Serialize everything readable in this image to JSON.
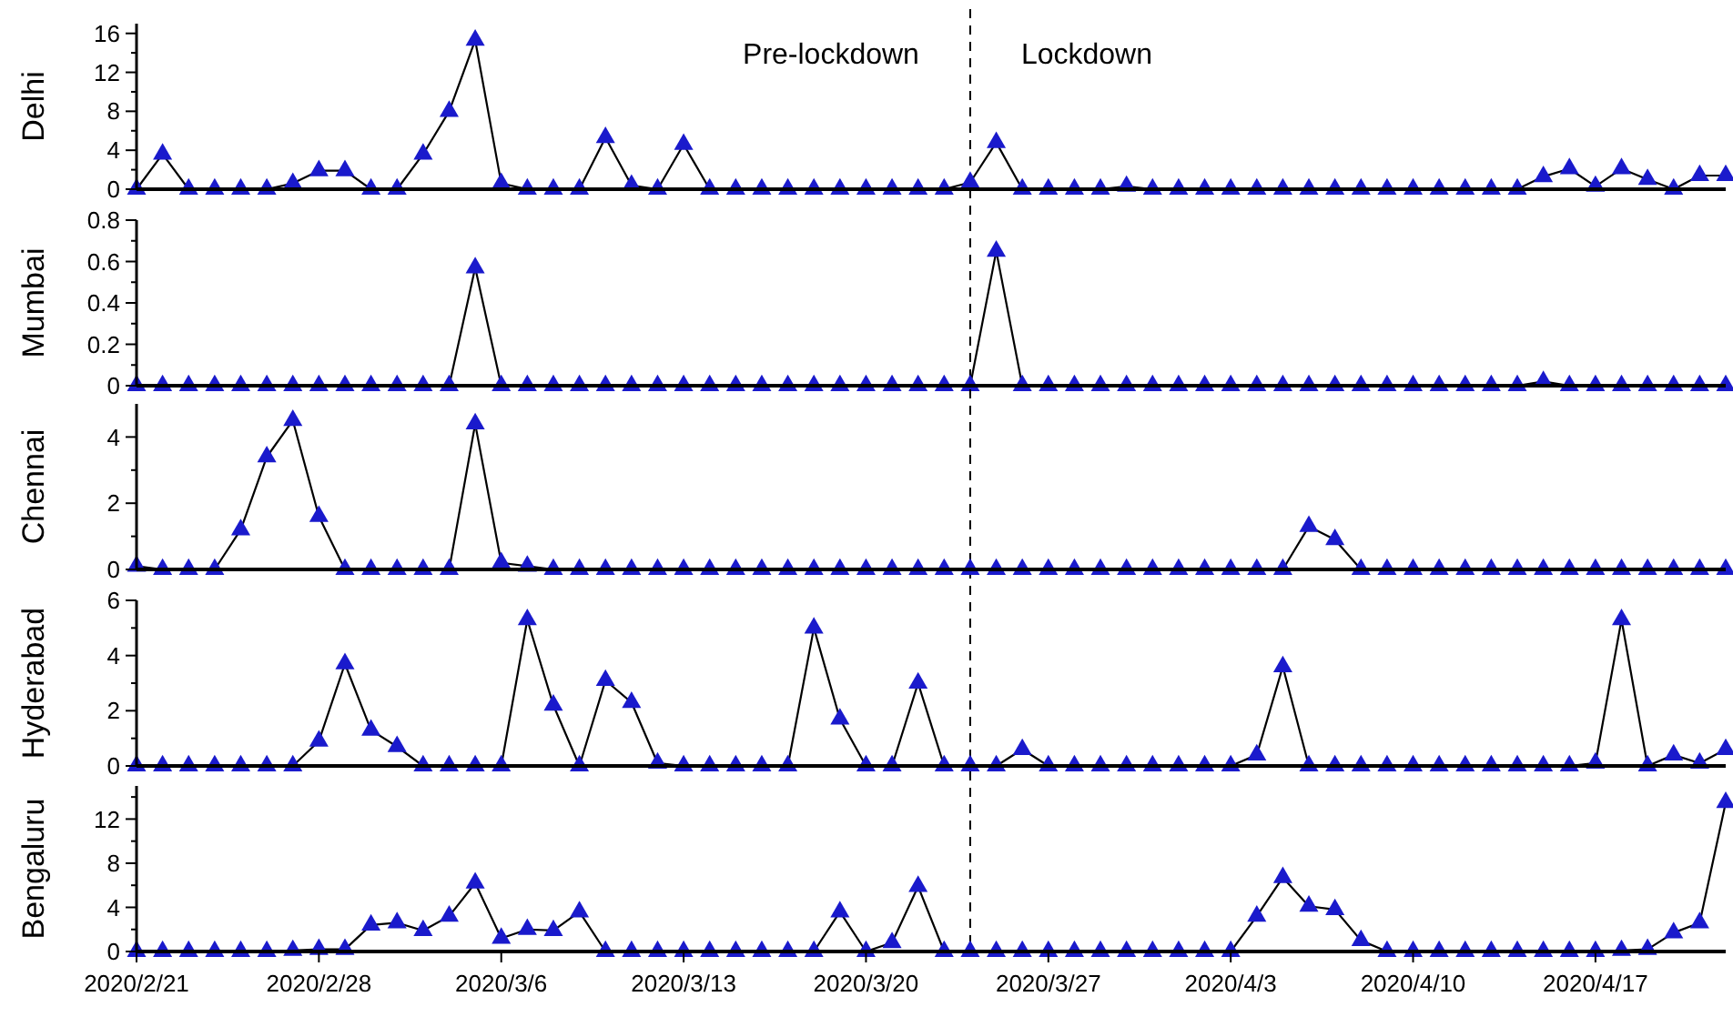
{
  "chart_data": [
    {
      "type": "line",
      "ylabel": "Delhi",
      "marker": "triangle",
      "tick_labels": "y",
      "xlim": [
        "2020-02-21",
        "2020-04-22"
      ],
      "ylim": [
        0,
        17
      ],
      "yticks": [
        0,
        {
          "value": 2,
          "label": null
        },
        4,
        {
          "value": 6,
          "label": null
        },
        8,
        {
          "value": 10,
          "label": null
        },
        12,
        {
          "value": 14,
          "label": null
        },
        16
      ],
      "x": [
        "2020-02-21",
        "2020-02-22",
        "2020-02-23",
        "2020-02-24",
        "2020-02-25",
        "2020-02-26",
        "2020-02-27",
        "2020-02-28",
        "2020-02-29",
        "2020-03-01",
        "2020-03-02",
        "2020-03-03",
        "2020-03-04",
        "2020-03-05",
        "2020-03-06",
        "2020-03-07",
        "2020-03-08",
        "2020-03-09",
        "2020-03-10",
        "2020-03-11",
        "2020-03-12",
        "2020-03-13",
        "2020-03-14",
        "2020-03-15",
        "2020-03-16",
        "2020-03-17",
        "2020-03-18",
        "2020-03-19",
        "2020-03-20",
        "2020-03-21",
        "2020-03-22",
        "2020-03-23",
        "2020-03-24",
        "2020-03-25",
        "2020-03-26",
        "2020-03-27",
        "2020-03-28",
        "2020-03-29",
        "2020-03-30",
        "2020-03-31",
        "2020-04-01",
        "2020-04-02",
        "2020-04-03",
        "2020-04-04",
        "2020-04-05",
        "2020-04-06",
        "2020-04-07",
        "2020-04-08",
        "2020-04-09",
        "2020-04-10",
        "2020-04-11",
        "2020-04-12",
        "2020-04-13",
        "2020-04-14",
        "2020-04-15",
        "2020-04-16",
        "2020-04-17",
        "2020-04-18",
        "2020-04-19",
        "2020-04-20",
        "2020-04-21",
        "2020-04-22"
      ],
      "series": [
        {
          "color": "#1a1acc",
          "values": [
            0,
            3.6,
            0,
            0,
            0,
            0,
            0.6,
            1.9,
            1.9,
            0,
            0,
            3.6,
            8,
            15.3,
            0.6,
            0,
            0,
            0,
            5.3,
            0.4,
            0,
            4.6,
            0,
            0,
            0,
            0,
            0,
            0,
            0,
            0,
            0,
            0,
            0.7,
            4.8,
            0,
            0,
            0,
            0,
            0.3,
            0,
            0,
            0,
            0,
            0,
            0,
            0,
            0,
            0,
            0,
            0,
            0,
            0,
            0,
            0,
            1.3,
            2.1,
            0.3,
            2.1,
            1,
            0,
            1.4,
            1.4
          ]
        }
      ],
      "ref_lines": [
        {
          "axis": "x",
          "value": "2020-03-24",
          "line_style": "dashed",
          "color": "#000000"
        }
      ],
      "annotations": [
        "Pre-lockdown",
        "Lockdown"
      ]
    },
    {
      "type": "line",
      "ylabel": "Mumbai",
      "marker": "triangle",
      "tick_labels": "y",
      "xlim": [
        "2020-02-21",
        "2020-04-22"
      ],
      "ylim": [
        0,
        0.8
      ],
      "yticks": [
        0,
        {
          "value": 0.1,
          "label": null
        },
        0.2,
        {
          "value": 0.3,
          "label": null
        },
        0.4,
        {
          "value": 0.5,
          "label": null
        },
        0.6,
        {
          "value": 0.7,
          "label": null
        },
        0.8
      ],
      "x": [
        "2020-02-21",
        "2020-02-22",
        "2020-02-23",
        "2020-02-24",
        "2020-02-25",
        "2020-02-26",
        "2020-02-27",
        "2020-02-28",
        "2020-02-29",
        "2020-03-01",
        "2020-03-02",
        "2020-03-03",
        "2020-03-04",
        "2020-03-05",
        "2020-03-06",
        "2020-03-07",
        "2020-03-08",
        "2020-03-09",
        "2020-03-10",
        "2020-03-11",
        "2020-03-12",
        "2020-03-13",
        "2020-03-14",
        "2020-03-15",
        "2020-03-16",
        "2020-03-17",
        "2020-03-18",
        "2020-03-19",
        "2020-03-20",
        "2020-03-21",
        "2020-03-22",
        "2020-03-23",
        "2020-03-24",
        "2020-03-25",
        "2020-03-26",
        "2020-03-27",
        "2020-03-28",
        "2020-03-29",
        "2020-03-30",
        "2020-03-31",
        "2020-04-01",
        "2020-04-02",
        "2020-04-03",
        "2020-04-04",
        "2020-04-05",
        "2020-04-06",
        "2020-04-07",
        "2020-04-08",
        "2020-04-09",
        "2020-04-10",
        "2020-04-11",
        "2020-04-12",
        "2020-04-13",
        "2020-04-14",
        "2020-04-15",
        "2020-04-16",
        "2020-04-17",
        "2020-04-18",
        "2020-04-19",
        "2020-04-20",
        "2020-04-21",
        "2020-04-22"
      ],
      "series": [
        {
          "color": "#1a1acc",
          "values": [
            0,
            0,
            0,
            0,
            0,
            0,
            0,
            0,
            0,
            0,
            0,
            0,
            0,
            0.57,
            0,
            0,
            0,
            0,
            0,
            0,
            0,
            0,
            0,
            0,
            0,
            0,
            0,
            0,
            0,
            0,
            0,
            0,
            0,
            0.65,
            0,
            0,
            0,
            0,
            0,
            0,
            0,
            0,
            0,
            0,
            0,
            0,
            0,
            0,
            0,
            0,
            0,
            0,
            0,
            0,
            0.02,
            0,
            0,
            0,
            0,
            0,
            0,
            0
          ]
        }
      ],
      "ref_lines": [
        {
          "axis": "x",
          "value": "2020-03-24",
          "line_style": "dashed",
          "color": "#000000"
        }
      ]
    },
    {
      "type": "line",
      "ylabel": "Chennai",
      "marker": "triangle",
      "tick_labels": "y",
      "xlim": [
        "2020-02-21",
        "2020-04-22"
      ],
      "ylim": [
        0,
        5
      ],
      "yticks": [
        0,
        {
          "value": 1,
          "label": null
        },
        2,
        {
          "value": 3,
          "label": null
        },
        4
      ],
      "x": [
        "2020-02-21",
        "2020-02-22",
        "2020-02-23",
        "2020-02-24",
        "2020-02-25",
        "2020-02-26",
        "2020-02-27",
        "2020-02-28",
        "2020-02-29",
        "2020-03-01",
        "2020-03-02",
        "2020-03-03",
        "2020-03-04",
        "2020-03-05",
        "2020-03-06",
        "2020-03-07",
        "2020-03-08",
        "2020-03-09",
        "2020-03-10",
        "2020-03-11",
        "2020-03-12",
        "2020-03-13",
        "2020-03-14",
        "2020-03-15",
        "2020-03-16",
        "2020-03-17",
        "2020-03-18",
        "2020-03-19",
        "2020-03-20",
        "2020-03-21",
        "2020-03-22",
        "2020-03-23",
        "2020-03-24",
        "2020-03-25",
        "2020-03-26",
        "2020-03-27",
        "2020-03-28",
        "2020-03-29",
        "2020-03-30",
        "2020-03-31",
        "2020-04-01",
        "2020-04-02",
        "2020-04-03",
        "2020-04-04",
        "2020-04-05",
        "2020-04-06",
        "2020-04-07",
        "2020-04-08",
        "2020-04-09",
        "2020-04-10",
        "2020-04-11",
        "2020-04-12",
        "2020-04-13",
        "2020-04-14",
        "2020-04-15",
        "2020-04-16",
        "2020-04-17",
        "2020-04-18",
        "2020-04-19",
        "2020-04-20",
        "2020-04-21",
        "2020-04-22"
      ],
      "series": [
        {
          "color": "#1a1acc",
          "values": [
            0.1,
            0,
            0,
            0,
            1.2,
            3.4,
            4.5,
            1.6,
            0,
            0,
            0,
            0,
            0,
            4.4,
            0.2,
            0.1,
            0,
            0,
            0,
            0,
            0,
            0,
            0,
            0,
            0,
            0,
            0,
            0,
            0,
            0,
            0,
            0,
            0,
            0,
            0,
            0,
            0,
            0,
            0,
            0,
            0,
            0,
            0,
            0,
            0,
            1.3,
            0.9,
            0,
            0,
            0,
            0,
            0,
            0,
            0,
            0,
            0,
            0,
            0,
            0,
            0,
            0,
            0
          ]
        }
      ],
      "ref_lines": [
        {
          "axis": "x",
          "value": "2020-03-24",
          "line_style": "dashed",
          "color": "#000000"
        }
      ]
    },
    {
      "type": "line",
      "ylabel": "Hyderabad",
      "marker": "triangle",
      "tick_labels": "y",
      "xlim": [
        "2020-02-21",
        "2020-04-22"
      ],
      "ylim": [
        0,
        6
      ],
      "yticks": [
        0,
        {
          "value": 1,
          "label": null
        },
        2,
        {
          "value": 3,
          "label": null
        },
        4,
        {
          "value": 5,
          "label": null
        },
        6
      ],
      "x": [
        "2020-02-21",
        "2020-02-22",
        "2020-02-23",
        "2020-02-24",
        "2020-02-25",
        "2020-02-26",
        "2020-02-27",
        "2020-02-28",
        "2020-02-29",
        "2020-03-01",
        "2020-03-02",
        "2020-03-03",
        "2020-03-04",
        "2020-03-05",
        "2020-03-06",
        "2020-03-07",
        "2020-03-08",
        "2020-03-09",
        "2020-03-10",
        "2020-03-11",
        "2020-03-12",
        "2020-03-13",
        "2020-03-14",
        "2020-03-15",
        "2020-03-16",
        "2020-03-17",
        "2020-03-18",
        "2020-03-19",
        "2020-03-20",
        "2020-03-21",
        "2020-03-22",
        "2020-03-23",
        "2020-03-24",
        "2020-03-25",
        "2020-03-26",
        "2020-03-27",
        "2020-03-28",
        "2020-03-29",
        "2020-03-30",
        "2020-03-31",
        "2020-04-01",
        "2020-04-02",
        "2020-04-03",
        "2020-04-04",
        "2020-04-05",
        "2020-04-06",
        "2020-04-07",
        "2020-04-08",
        "2020-04-09",
        "2020-04-10",
        "2020-04-11",
        "2020-04-12",
        "2020-04-13",
        "2020-04-14",
        "2020-04-15",
        "2020-04-16",
        "2020-04-17",
        "2020-04-18",
        "2020-04-19",
        "2020-04-20",
        "2020-04-21",
        "2020-04-22"
      ],
      "series": [
        {
          "color": "#1a1acc",
          "values": [
            0,
            0,
            0,
            0,
            0,
            0,
            0,
            0.9,
            3.7,
            1.3,
            0.7,
            0,
            0,
            0,
            0,
            5.3,
            2.2,
            0,
            3.1,
            2.3,
            0.1,
            0,
            0,
            0,
            0,
            0,
            5.0,
            1.7,
            0,
            0,
            3.0,
            0,
            0,
            0,
            0.6,
            0,
            0,
            0,
            0,
            0,
            0,
            0,
            0,
            0.4,
            3.6,
            0,
            0,
            0,
            0,
            0,
            0,
            0,
            0,
            0,
            0,
            0,
            0.1,
            5.3,
            0,
            0.4,
            0.1,
            0.6
          ]
        }
      ],
      "ref_lines": [
        {
          "axis": "x",
          "value": "2020-03-24",
          "line_style": "dashed",
          "color": "#000000"
        }
      ]
    },
    {
      "type": "line",
      "ylabel": "Bengaluru",
      "marker": "triangle",
      "xlim": [
        "2020-02-21",
        "2020-04-22"
      ],
      "ylim": [
        0,
        15
      ],
      "yticks": [
        0,
        {
          "value": 2,
          "label": null
        },
        4,
        {
          "value": 6,
          "label": null
        },
        8,
        {
          "value": 10,
          "label": null
        },
        12,
        {
          "value": 14,
          "label": null
        }
      ],
      "xticks": [
        {
          "value": "2020-02-21",
          "label": "2020/2/21"
        },
        {
          "value": "2020-02-28",
          "label": "2020/2/28"
        },
        {
          "value": "2020-03-06",
          "label": "2020/3/6"
        },
        {
          "value": "2020-03-13",
          "label": "2020/3/13"
        },
        {
          "value": "2020-03-20",
          "label": "2020/3/20"
        },
        {
          "value": "2020-03-27",
          "label": "2020/3/27"
        },
        {
          "value": "2020-04-03",
          "label": "2020/4/3"
        },
        {
          "value": "2020-04-10",
          "label": "2020/4/10"
        },
        {
          "value": "2020-04-17",
          "label": "2020/4/17"
        }
      ],
      "x": [
        "2020-02-21",
        "2020-02-22",
        "2020-02-23",
        "2020-02-24",
        "2020-02-25",
        "2020-02-26",
        "2020-02-27",
        "2020-02-28",
        "2020-02-29",
        "2020-03-01",
        "2020-03-02",
        "2020-03-03",
        "2020-03-04",
        "2020-03-05",
        "2020-03-06",
        "2020-03-07",
        "2020-03-08",
        "2020-03-09",
        "2020-03-10",
        "2020-03-11",
        "2020-03-12",
        "2020-03-13",
        "2020-03-14",
        "2020-03-15",
        "2020-03-16",
        "2020-03-17",
        "2020-03-18",
        "2020-03-19",
        "2020-03-20",
        "2020-03-21",
        "2020-03-22",
        "2020-03-23",
        "2020-03-24",
        "2020-03-25",
        "2020-03-26",
        "2020-03-27",
        "2020-03-28",
        "2020-03-29",
        "2020-03-30",
        "2020-03-31",
        "2020-04-01",
        "2020-04-02",
        "2020-04-03",
        "2020-04-04",
        "2020-04-05",
        "2020-04-06",
        "2020-04-07",
        "2020-04-08",
        "2020-04-09",
        "2020-04-10",
        "2020-04-11",
        "2020-04-12",
        "2020-04-13",
        "2020-04-14",
        "2020-04-15",
        "2020-04-16",
        "2020-04-17",
        "2020-04-18",
        "2020-04-19",
        "2020-04-20",
        "2020-04-21",
        "2020-04-22"
      ],
      "series": [
        {
          "color": "#1a1acc",
          "values": [
            0,
            0,
            0,
            0,
            0,
            0,
            0.1,
            0.2,
            0.2,
            2.4,
            2.6,
            1.9,
            3.2,
            6.2,
            1.2,
            2.0,
            1.9,
            3.6,
            0,
            0,
            0,
            0,
            0,
            0,
            0,
            0,
            0,
            3.6,
            0,
            0.8,
            5.9,
            0,
            0,
            0,
            0,
            0,
            0,
            0,
            0,
            0,
            0,
            0,
            0,
            3.2,
            6.7,
            4.1,
            3.8,
            1.0,
            0,
            0,
            0,
            0,
            0,
            0,
            0,
            0,
            0,
            0.1,
            0.2,
            1.7,
            2.6,
            13.5
          ]
        }
      ],
      "ref_lines": [
        {
          "axis": "x",
          "value": "2020-03-24",
          "line_style": "dashed",
          "color": "#000000"
        }
      ]
    }
  ]
}
